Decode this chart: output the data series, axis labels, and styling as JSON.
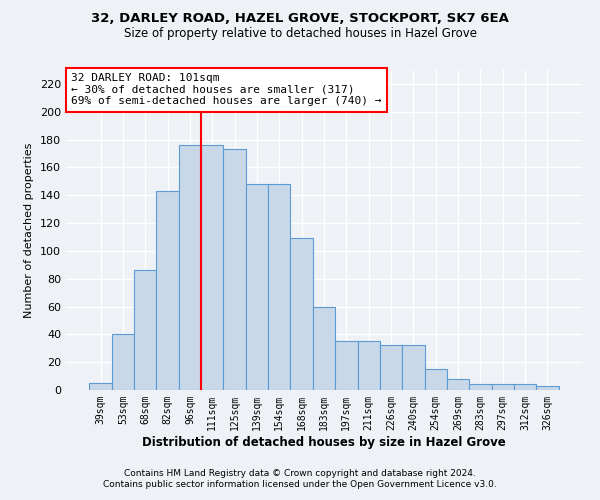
{
  "title1": "32, DARLEY ROAD, HAZEL GROVE, STOCKPORT, SK7 6EA",
  "title2": "Size of property relative to detached houses in Hazel Grove",
  "xlabel": "Distribution of detached houses by size in Hazel Grove",
  "ylabel": "Number of detached properties",
  "footer1": "Contains HM Land Registry data © Crown copyright and database right 2024.",
  "footer2": "Contains public sector information licensed under the Open Government Licence v3.0.",
  "categories": [
    "39sqm",
    "53sqm",
    "68sqm",
    "82sqm",
    "96sqm",
    "111sqm",
    "125sqm",
    "139sqm",
    "154sqm",
    "168sqm",
    "183sqm",
    "197sqm",
    "211sqm",
    "226sqm",
    "240sqm",
    "254sqm",
    "269sqm",
    "283sqm",
    "297sqm",
    "312sqm",
    "326sqm"
  ],
  "values": [
    5,
    40,
    86,
    143,
    176,
    176,
    173,
    148,
    148,
    109,
    60,
    35,
    35,
    32,
    32,
    15,
    8,
    4,
    4,
    4,
    3
  ],
  "bar_color": "#c8d8e8",
  "bar_edge_color": "#5b9bd5",
  "vline_x_index": 4.5,
  "vline_color": "red",
  "annotation_text": "32 DARLEY ROAD: 101sqm\n← 30% of detached houses are smaller (317)\n69% of semi-detached houses are larger (740) →",
  "annotation_box_color": "white",
  "annotation_box_edge": "red",
  "ylim": [
    0,
    230
  ],
  "yticks": [
    0,
    20,
    40,
    60,
    80,
    100,
    120,
    140,
    160,
    180,
    200,
    220
  ],
  "background_color": "#eef2f7",
  "grid_color": "white",
  "title1_fontsize": 9.5,
  "title2_fontsize": 8.5
}
